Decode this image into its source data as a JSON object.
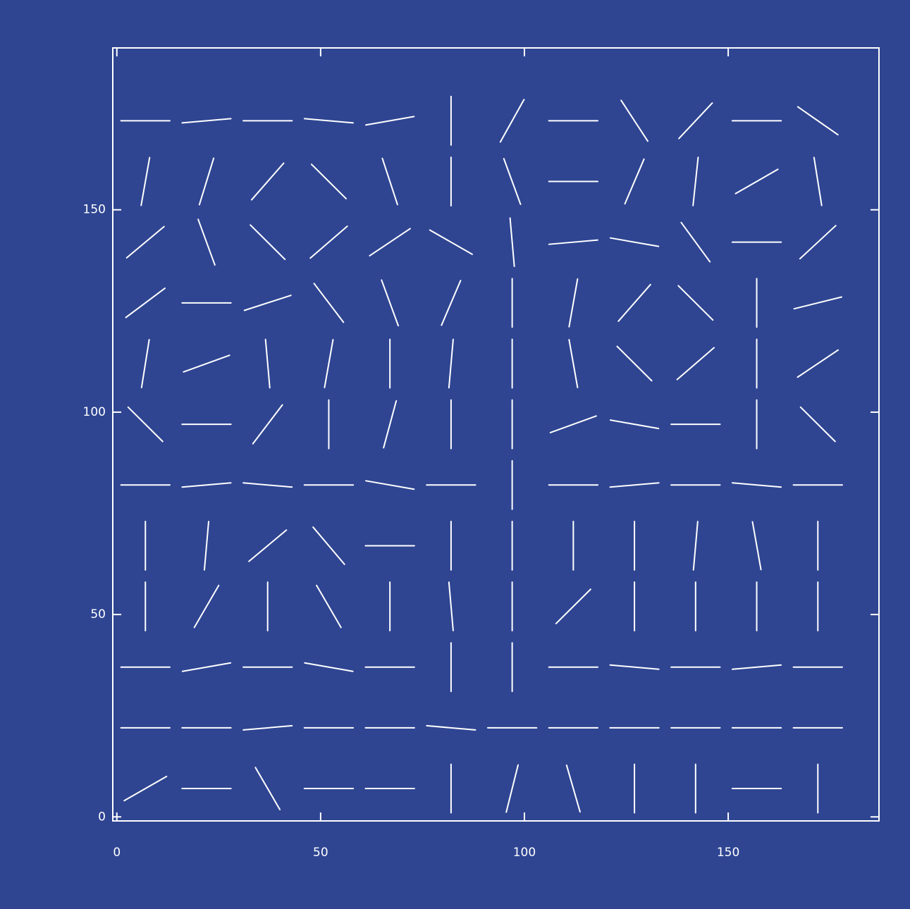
{
  "chart_data": {
    "type": "vector-field",
    "color": "#ffffff",
    "background": "#2f4592",
    "xlim": [
      -1,
      187
    ],
    "ylim": [
      -1,
      190
    ],
    "xticks": [
      0,
      50,
      100,
      150
    ],
    "yticks": [
      0,
      50,
      100,
      150
    ],
    "x": [
      7,
      22,
      37,
      52,
      67,
      82,
      97,
      112,
      127,
      142,
      157,
      172
    ],
    "y": [
      7,
      22,
      37,
      52,
      67,
      82,
      97,
      112,
      127,
      142,
      157,
      172
    ],
    "angles": [
      [
        30,
        0,
        120,
        0,
        0,
        90,
        76,
        106,
        90,
        90,
        0,
        90
      ],
      [
        0,
        0,
        5,
        0,
        0,
        175,
        0,
        0,
        0,
        0,
        0,
        0
      ],
      [
        0,
        10,
        0,
        170,
        0,
        90,
        90,
        0,
        175,
        0,
        5,
        0
      ],
      [
        90,
        60,
        90,
        120,
        90,
        95,
        90,
        45,
        90,
        90,
        90,
        90
      ],
      [
        90,
        85,
        40,
        130,
        0,
        90,
        90,
        90,
        90,
        85,
        100,
        90
      ],
      [
        0,
        5,
        175,
        0,
        170,
        0,
        90,
        0,
        5,
        0,
        175,
        0
      ],
      [
        135,
        0,
        53,
        90,
        75,
        90,
        90,
        20,
        170,
        0,
        90,
        135
      ],
      [
        81,
        20,
        95,
        80,
        90,
        85,
        90,
        100,
        135,
        41,
        90,
        34
      ],
      [
        37,
        0,
        18,
        127,
        110,
        67,
        90,
        80,
        49,
        135,
        90,
        14
      ],
      [
        40,
        110,
        135,
        41,
        34,
        150,
        95,
        5,
        170,
        126,
        0,
        43
      ],
      [
        80,
        73,
        49,
        135,
        108,
        90,
        110,
        0,
        67,
        84,
        30,
        99
      ],
      [
        0,
        5,
        0,
        175,
        10,
        90,
        61,
        0,
        123,
        47,
        0,
        145
      ]
    ]
  }
}
